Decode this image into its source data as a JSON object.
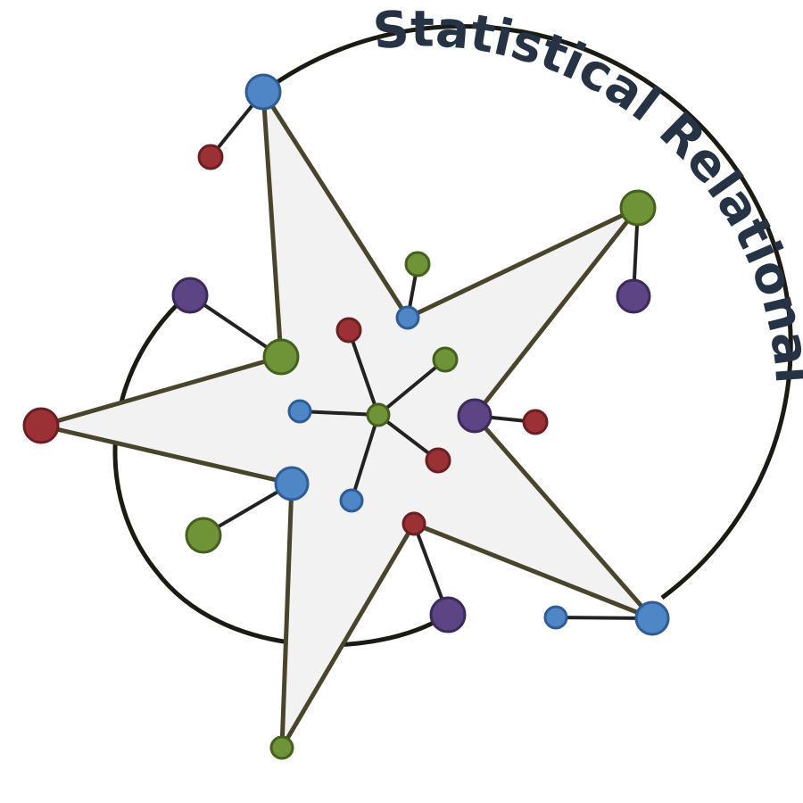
{
  "logo": {
    "title": "Statistical Relational AI"
  },
  "colors": {
    "star_fill": "#f2f2f2",
    "star_stroke": "#49452c",
    "arc": "#1b1b14",
    "node_stroke_dark": "#222222",
    "blue": "#4f86c6",
    "green": "#6f9437",
    "red": "#9b3134",
    "purple": "#5c4485",
    "title": "#263345"
  },
  "node_types": [
    "blue-node",
    "green-node",
    "red-node",
    "purple-node"
  ]
}
